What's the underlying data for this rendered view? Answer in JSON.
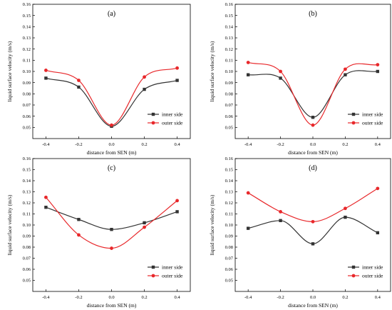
{
  "chart_data": [
    {
      "type": "line",
      "title": "(a)",
      "xlabel": "distance from SEN (m)",
      "ylabel": "liquid surface velocity (m/s)",
      "xlim": [
        -0.48,
        0.48
      ],
      "ylim": [
        0.04,
        0.16
      ],
      "xticks": [
        "-0.4",
        "-0.2",
        "0.0",
        "0.2",
        "0.4"
      ],
      "yticks": [
        "0.05",
        "0.06",
        "0.07",
        "0.08",
        "0.09",
        "0.10",
        "0.11",
        "0.12",
        "0.13",
        "0.14",
        "0.15",
        "0.16"
      ],
      "x": [
        -0.4,
        -0.2,
        0.0,
        0.2,
        0.4
      ],
      "series": [
        {
          "name": "inner side",
          "color": "#333333",
          "marker": "square",
          "values": [
            0.094,
            0.086,
            0.051,
            0.084,
            0.092
          ]
        },
        {
          "name": "outer side",
          "color": "#e8282b",
          "marker": "circle",
          "values": [
            0.101,
            0.092,
            0.052,
            0.095,
            0.103
          ]
        }
      ],
      "legend": "bottom-right",
      "grid": false
    },
    {
      "type": "line",
      "title": "(b)",
      "xlabel": "distance from SEN (m)",
      "ylabel": "liquid surface velocity (m/s)",
      "xlim": [
        -0.48,
        0.48
      ],
      "ylim": [
        0.04,
        0.16
      ],
      "xticks": [
        "-0.4",
        "-0.2",
        "0.0",
        "0.2",
        "0.4"
      ],
      "yticks": [
        "0.05",
        "0.06",
        "0.07",
        "0.08",
        "0.09",
        "0.10",
        "0.11",
        "0.12",
        "0.13",
        "0.14",
        "0.15",
        "0.16"
      ],
      "x": [
        -0.4,
        -0.2,
        0.0,
        0.2,
        0.4
      ],
      "series": [
        {
          "name": "inner side",
          "color": "#333333",
          "marker": "square",
          "values": [
            0.097,
            0.094,
            0.059,
            0.097,
            0.1
          ]
        },
        {
          "name": "outer side",
          "color": "#e8282b",
          "marker": "circle",
          "values": [
            0.108,
            0.1,
            0.052,
            0.102,
            0.106
          ]
        }
      ],
      "legend": "bottom-right",
      "grid": false
    },
    {
      "type": "line",
      "title": "(c)",
      "xlabel": "distance from SEN (m)",
      "ylabel": "liquid surface velocity (m/s)",
      "xlim": [
        -0.48,
        0.48
      ],
      "ylim": [
        0.04,
        0.16
      ],
      "xticks": [
        "-0.4",
        "-0.2",
        "0.0",
        "0.2",
        "0.4"
      ],
      "yticks": [
        "0.05",
        "0.06",
        "0.07",
        "0.08",
        "0.09",
        "0.10",
        "0.11",
        "0.12",
        "0.13",
        "0.14",
        "0.15",
        "0.16"
      ],
      "x": [
        -0.4,
        -0.2,
        0.0,
        0.2,
        0.4
      ],
      "series": [
        {
          "name": "inner side",
          "color": "#333333",
          "marker": "square",
          "values": [
            0.116,
            0.105,
            0.096,
            0.102,
            0.112
          ]
        },
        {
          "name": "outer side",
          "color": "#e8282b",
          "marker": "circle",
          "values": [
            0.125,
            0.091,
            0.079,
            0.098,
            0.122
          ]
        }
      ],
      "legend": "bottom-right",
      "grid": false
    },
    {
      "type": "line",
      "title": "(d)",
      "xlabel": "distance from SEN (m)",
      "ylabel": "liquid surface velocity (m/s)",
      "xlim": [
        -0.48,
        0.48
      ],
      "ylim": [
        0.04,
        0.16
      ],
      "xticks": [
        "-0.4",
        "-0.2",
        "0.0",
        "0.2",
        "0.4"
      ],
      "yticks": [
        "0.05",
        "0.06",
        "0.07",
        "0.08",
        "0.09",
        "0.10",
        "0.11",
        "0.12",
        "0.13",
        "0.14",
        "0.15",
        "0.16"
      ],
      "x": [
        -0.4,
        -0.2,
        0.0,
        0.2,
        0.4
      ],
      "series": [
        {
          "name": "inner side",
          "color": "#333333",
          "marker": "square",
          "values": [
            0.097,
            0.104,
            0.083,
            0.107,
            0.093
          ]
        },
        {
          "name": "outer side",
          "color": "#e8282b",
          "marker": "circle",
          "values": [
            0.129,
            0.112,
            0.103,
            0.115,
            0.133
          ]
        }
      ],
      "legend": "bottom-right",
      "grid": false
    }
  ]
}
